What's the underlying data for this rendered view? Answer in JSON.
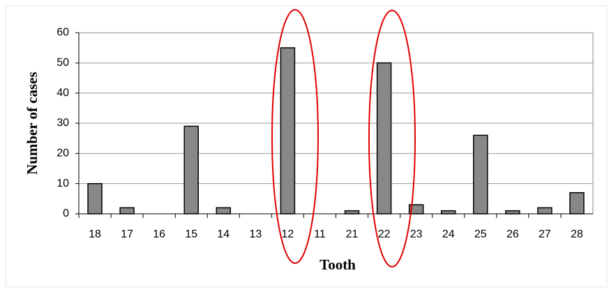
{
  "chart_data": {
    "type": "bar",
    "categories": [
      "18",
      "17",
      "16",
      "15",
      "14",
      "13",
      "12",
      "11",
      "21",
      "22",
      "23",
      "24",
      "25",
      "26",
      "27",
      "28"
    ],
    "values": [
      10,
      2,
      0,
      29,
      2,
      0,
      55,
      0,
      1,
      50,
      3,
      1,
      26,
      1,
      2,
      7
    ],
    "color": "#888888",
    "x_label": "Tooth",
    "y_label": "Number of cases",
    "ylim": [
      0,
      60
    ],
    "yticks": [
      0,
      10,
      20,
      30,
      40,
      50,
      60
    ],
    "grid": true
  }
}
